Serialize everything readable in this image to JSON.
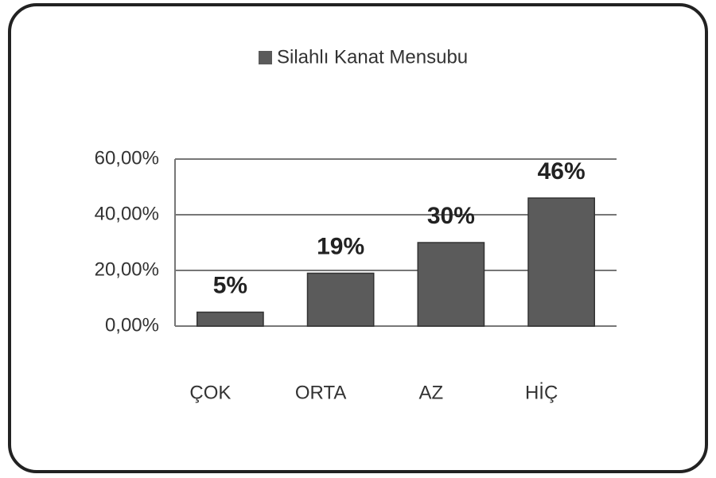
{
  "chart_data": {
    "type": "bar",
    "legend": "Silahlı Kanat Mensubu",
    "categories": [
      "ÇOK",
      "ORTA",
      "AZ",
      "HİÇ"
    ],
    "values": [
      5,
      19,
      30,
      46
    ],
    "value_labels": [
      "5%",
      "19%",
      "30%",
      "46%"
    ],
    "color": "#5b5b5b",
    "ylim": [
      0,
      60
    ],
    "yticks": [
      {
        "value": 0,
        "label": "0,00%"
      },
      {
        "value": 20,
        "label": "20,00%"
      },
      {
        "value": 40,
        "label": "40,00%"
      },
      {
        "value": 60,
        "label": "60,00%"
      }
    ],
    "grid": true
  }
}
